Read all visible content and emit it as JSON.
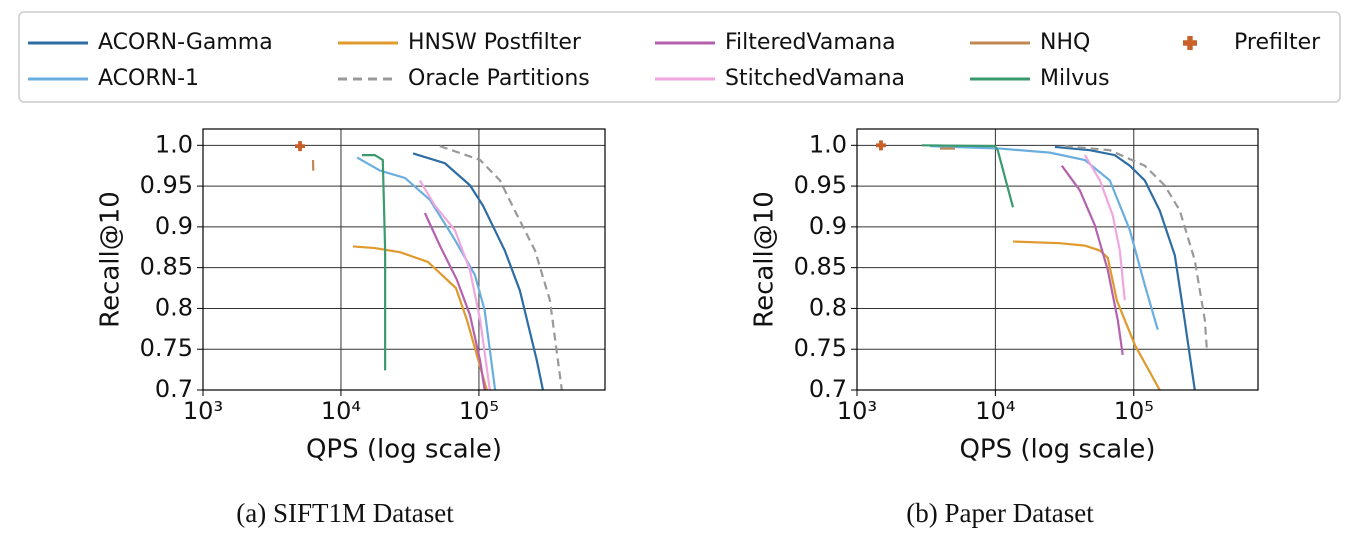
{
  "chart_data": [
    {
      "type": "line",
      "caption": "(a) SIFT1M Dataset",
      "xlabel": "QPS (log scale)",
      "ylabel": "Recall@10",
      "xscale": "log",
      "xlim": [
        1000,
        820000
      ],
      "ylim": [
        0.7,
        1.02
      ],
      "xticks": [
        {
          "value": 1000,
          "label": "10³"
        },
        {
          "value": 10000,
          "label": "10⁴"
        },
        {
          "value": 100000,
          "label": "10⁵"
        }
      ],
      "yticks": [
        0.7,
        0.75,
        0.8,
        0.85,
        0.9,
        0.95,
        {
          "value": 1,
          "label": "1.0"
        }
      ],
      "grid": true,
      "series": [
        {
          "name": "ACORN-Gamma",
          "color": "#2e6da4",
          "x": [
            33300,
            56700,
            86100,
            107000,
            154000,
            198000,
            263000,
            291000
          ],
          "values": [
            0.99,
            0.978,
            0.951,
            0.926,
            0.871,
            0.822,
            0.736,
            0.7
          ]
        },
        {
          "name": "ACORN-1",
          "color": "#6aaee0",
          "x": [
            13100,
            19200,
            29100,
            44200,
            67000,
            93500,
            110000,
            131000
          ],
          "values": [
            0.985,
            0.969,
            0.96,
            0.933,
            0.884,
            0.841,
            0.798,
            0.7
          ]
        },
        {
          "name": "HNSW Postfilter",
          "color": "#e0992c",
          "x": [
            12200,
            17600,
            26800,
            42700,
            68100,
            81800,
            114000
          ],
          "values": [
            0.876,
            0.874,
            0.869,
            0.857,
            0.825,
            0.786,
            0.7
          ]
        },
        {
          "name": "Oracle Partitions",
          "color": "#999999",
          "linestyle": "dashed",
          "x": [
            52100,
            102000,
            142000,
            182000,
            255000,
            327000,
            399000
          ],
          "values": [
            0.999,
            0.982,
            0.957,
            0.92,
            0.871,
            0.81,
            0.7
          ]
        },
        {
          "name": "FilteredVamana",
          "color": "#b462ae",
          "x": [
            40600,
            52100,
            69300,
            86100,
            102000,
            110000
          ],
          "values": [
            0.917,
            0.877,
            0.835,
            0.792,
            0.736,
            0.7
          ]
        },
        {
          "name": "StitchedVamana",
          "color": "#f0a6df",
          "x": [
            37300,
            48000,
            67000,
            86100,
            102000,
            120000
          ],
          "values": [
            0.957,
            0.926,
            0.896,
            0.847,
            0.786,
            0.7
          ]
        },
        {
          "name": "NHQ",
          "color": "#c08752",
          "x": [
            6270,
            6300
          ],
          "values": [
            0.982,
            0.969
          ]
        },
        {
          "name": "Milvus",
          "color": "#3a9a6e",
          "x": [
            14200,
            17600,
            20100,
            20900,
            20900
          ],
          "values": [
            0.988,
            0.988,
            0.982,
            0.871,
            0.724
          ]
        },
        {
          "name": "Prefilter",
          "color": "#c8602a",
          "marker": "plus",
          "x": [
            5050
          ],
          "values": [
            0.999
          ]
        }
      ]
    },
    {
      "type": "line",
      "caption": "(b) Paper Dataset",
      "xlabel": "QPS (log scale)",
      "ylabel": "Recall@10",
      "xscale": "log",
      "xlim": [
        1000,
        790000
      ],
      "ylim": [
        0.7,
        1.02
      ],
      "xticks": [
        {
          "value": 1000,
          "label": "10³"
        },
        {
          "value": 10000,
          "label": "10⁴"
        },
        {
          "value": 100000,
          "label": "10⁵"
        }
      ],
      "yticks": [
        0.7,
        0.75,
        0.8,
        0.85,
        0.9,
        0.95,
        {
          "value": 1,
          "label": "1.0"
        }
      ],
      "grid": true,
      "series": [
        {
          "name": "ACORN-Gamma",
          "color": "#2e6da4",
          "x": [
            26900,
            48100,
            72900,
            93600,
            120000,
            154000,
            198000,
            233000,
            276000
          ],
          "values": [
            0.998,
            0.994,
            0.988,
            0.975,
            0.957,
            0.92,
            0.865,
            0.786,
            0.7
          ]
        },
        {
          "name": "ACORN-1",
          "color": "#6aaee0",
          "x": [
            3370,
            10800,
            24800,
            44300,
            67100,
            93600,
            120000,
            149000
          ],
          "values": [
            0.999,
            0.996,
            0.991,
            0.982,
            0.957,
            0.896,
            0.829,
            0.774
          ]
        },
        {
          "name": "HNSW Postfilter",
          "color": "#e0992c",
          "x": [
            13400,
            29200,
            44300,
            56900,
            64900,
            75400,
            102000,
            154000
          ],
          "values": [
            0.882,
            0.88,
            0.877,
            0.871,
            0.862,
            0.81,
            0.755,
            0.7
          ]
        },
        {
          "name": "Oracle Partitions",
          "color": "#999999",
          "linestyle": "dashed",
          "x": [
            31700,
            67100,
            120000,
            167000,
            215000,
            276000,
            326000,
            337000
          ],
          "values": [
            0.999,
            0.994,
            0.975,
            0.951,
            0.92,
            0.859,
            0.786,
            0.751
          ]
        },
        {
          "name": "FilteredVamana",
          "color": "#b462ae",
          "x": [
            30200,
            40700,
            52300,
            64900,
            76600,
            83200
          ],
          "values": [
            0.975,
            0.945,
            0.902,
            0.847,
            0.786,
            0.743
          ]
        },
        {
          "name": "StitchedVamana",
          "color": "#f0a6df",
          "x": [
            44300,
            56900,
            70500,
            79300,
            86100
          ],
          "values": [
            0.988,
            0.957,
            0.914,
            0.871,
            0.81
          ]
        },
        {
          "name": "NHQ",
          "color": "#c08752",
          "x": [
            3980,
            5100
          ],
          "values": [
            0.996,
            0.996
          ]
        },
        {
          "name": "Milvus",
          "color": "#3a9a6e",
          "x": [
            2940,
            9910,
            10400,
            13400
          ],
          "values": [
            1.0,
            0.999,
            0.994,
            0.924
          ]
        },
        {
          "name": "Prefilter",
          "color": "#c8602a",
          "marker": "plus",
          "x": [
            1490
          ],
          "values": [
            1.0
          ]
        }
      ]
    }
  ]
}
